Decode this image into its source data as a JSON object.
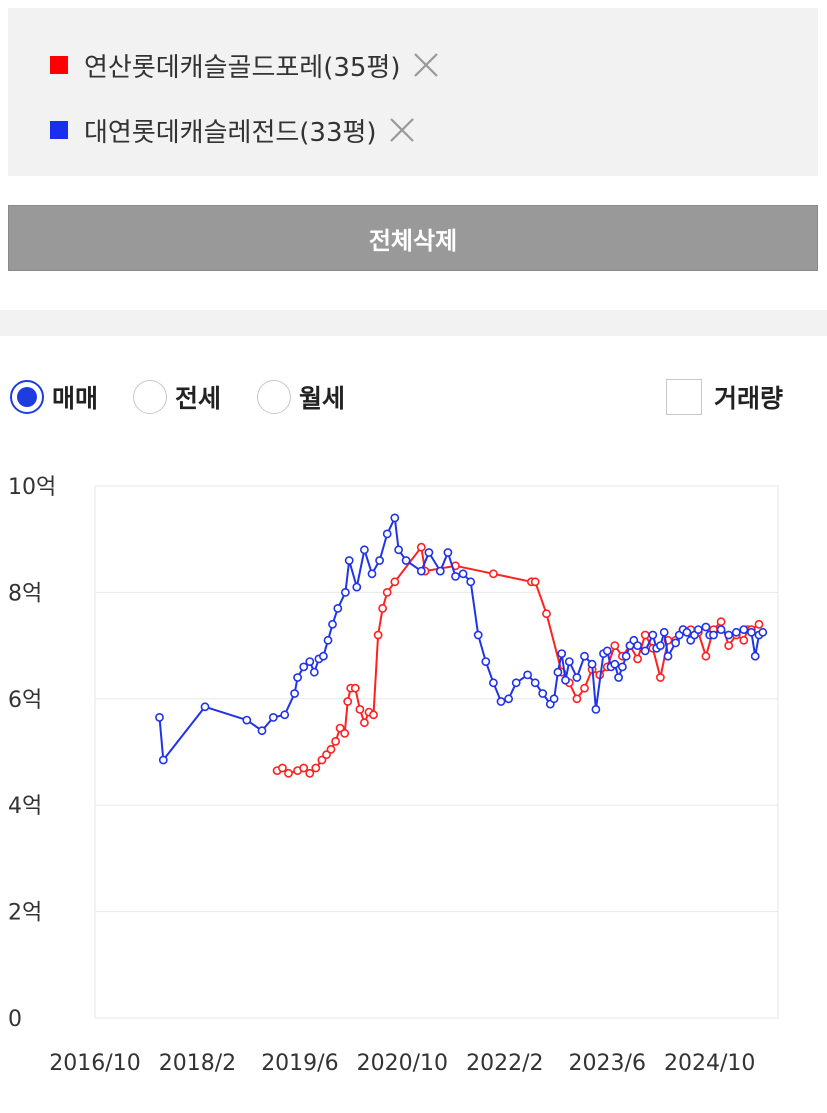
{
  "compare": {
    "items": [
      {
        "label": "연산롯데캐슬골드포레(35평)",
        "color": "#ff0000",
        "remove_icon": "close-icon"
      },
      {
        "label": "대연롯데캐슬레전드(33평)",
        "color": "#1a2ef0",
        "remove_icon": "close-icon"
      }
    ],
    "clear_all_label": "전체삭제"
  },
  "controls": {
    "radios": [
      {
        "label": "매매",
        "selected": true
      },
      {
        "label": "전세",
        "selected": false
      },
      {
        "label": "월세",
        "selected": false
      }
    ],
    "volume_checkbox": {
      "label": "거래량",
      "checked": false
    },
    "accent": "#1e3de0"
  },
  "chart_data": {
    "type": "line",
    "x_unit": "year (decimal)",
    "y_unit": "억",
    "ylim": [
      0,
      10
    ],
    "xlim": [
      2016.75,
      2025.75
    ],
    "y_ticks": [
      {
        "value": 0,
        "label": "0"
      },
      {
        "value": 2,
        "label": "2억"
      },
      {
        "value": 4,
        "label": "4억"
      },
      {
        "value": 6,
        "label": "6억"
      },
      {
        "value": 8,
        "label": "8억"
      },
      {
        "value": 10,
        "label": "10억"
      }
    ],
    "x_ticks": [
      {
        "value": 2016.75,
        "label": "2016/10"
      },
      {
        "value": 2018.1,
        "label": "2018/2"
      },
      {
        "value": 2019.45,
        "label": "2019/6"
      },
      {
        "value": 2020.8,
        "label": "2020/10"
      },
      {
        "value": 2022.15,
        "label": "2022/2"
      },
      {
        "value": 2023.5,
        "label": "2023/6"
      },
      {
        "value": 2024.85,
        "label": "2024/10"
      }
    ],
    "grid": true,
    "series": [
      {
        "name": "연산롯데캐슬골드포레(35평)",
        "color": "#ff2020",
        "x": [
          2019.15,
          2019.22,
          2019.3,
          2019.42,
          2019.5,
          2019.58,
          2019.66,
          2019.74,
          2019.8,
          2019.86,
          2019.92,
          2019.98,
          2020.04,
          2020.08,
          2020.12,
          2020.18,
          2020.24,
          2020.3,
          2020.36,
          2020.42,
          2020.48,
          2020.54,
          2020.6,
          2020.7,
          2021.05,
          2021.1,
          2021.5,
          2022.0,
          2022.5,
          2022.55,
          2022.7,
          2022.9,
          2023.0,
          2023.1,
          2023.2,
          2023.3,
          2023.4,
          2023.5,
          2023.6,
          2023.7,
          2023.8,
          2023.9,
          2024.0,
          2024.1,
          2024.2,
          2024.3,
          2024.4,
          2024.5,
          2024.6,
          2024.7,
          2024.8,
          2024.9,
          2025.0,
          2025.1,
          2025.2,
          2025.3,
          2025.35,
          2025.4,
          2025.5
        ],
        "y": [
          4.65,
          4.7,
          4.6,
          4.65,
          4.7,
          4.6,
          4.7,
          4.85,
          4.95,
          5.05,
          5.2,
          5.45,
          5.35,
          5.95,
          6.2,
          6.2,
          5.8,
          5.55,
          5.75,
          5.7,
          7.2,
          7.7,
          8.0,
          8.2,
          8.85,
          8.4,
          8.5,
          8.35,
          8.2,
          8.2,
          7.6,
          6.5,
          6.3,
          6.0,
          6.2,
          6.55,
          6.45,
          6.6,
          7.0,
          6.8,
          7.0,
          6.75,
          7.2,
          6.95,
          6.4,
          7.1,
          7.1,
          7.3,
          7.3,
          7.25,
          6.8,
          7.3,
          7.45,
          7.0,
          7.2,
          7.1,
          7.3,
          7.3,
          7.4
        ]
      },
      {
        "name": "대연롯데캐슬레전드(33평)",
        "color": "#2033e8",
        "x": [
          2017.6,
          2017.65,
          2018.2,
          2018.75,
          2018.95,
          2019.1,
          2019.25,
          2019.38,
          2019.42,
          2019.5,
          2019.58,
          2019.64,
          2019.7,
          2019.76,
          2019.82,
          2019.88,
          2019.95,
          2020.05,
          2020.1,
          2020.2,
          2020.3,
          2020.4,
          2020.5,
          2020.6,
          2020.7,
          2020.75,
          2020.85,
          2021.05,
          2021.15,
          2021.3,
          2021.4,
          2021.5,
          2021.6,
          2021.7,
          2021.8,
          2021.9,
          2022.0,
          2022.1,
          2022.2,
          2022.3,
          2022.45,
          2022.55,
          2022.65,
          2022.75,
          2022.8,
          2022.85,
          2022.9,
          2022.95,
          2023.0,
          2023.1,
          2023.2,
          2023.3,
          2023.35,
          2023.45,
          2023.5,
          2023.55,
          2023.6,
          2023.65,
          2023.7,
          2023.75,
          2023.8,
          2023.85,
          2023.9,
          2024.0,
          2024.1,
          2024.15,
          2024.2,
          2024.25,
          2024.3,
          2024.4,
          2024.45,
          2024.5,
          2024.55,
          2024.6,
          2024.65,
          2024.7,
          2024.8,
          2024.85,
          2024.9,
          2025.0,
          2025.1,
          2025.2,
          2025.3,
          2025.4,
          2025.45,
          2025.5,
          2025.55
        ],
        "y": [
          5.65,
          4.85,
          5.85,
          5.6,
          5.4,
          5.65,
          5.7,
          6.1,
          6.4,
          6.6,
          6.7,
          6.5,
          6.75,
          6.8,
          7.1,
          7.4,
          7.7,
          8.0,
          8.6,
          8.1,
          8.8,
          8.35,
          8.6,
          9.1,
          9.4,
          8.8,
          8.6,
          8.4,
          8.75,
          8.4,
          8.75,
          8.3,
          8.35,
          8.2,
          7.2,
          6.7,
          6.3,
          5.95,
          6.0,
          6.3,
          6.45,
          6.3,
          6.1,
          5.9,
          6.0,
          6.5,
          6.85,
          6.35,
          6.7,
          6.4,
          6.8,
          6.65,
          5.8,
          6.85,
          6.9,
          6.6,
          6.65,
          6.4,
          6.6,
          6.8,
          7.0,
          7.1,
          7.0,
          6.9,
          7.2,
          6.95,
          7.0,
          7.25,
          6.8,
          7.05,
          7.2,
          7.3,
          7.25,
          7.1,
          7.2,
          7.3,
          7.35,
          7.2,
          7.2,
          7.3,
          7.2,
          7.25,
          7.3,
          7.25,
          6.8,
          7.2,
          7.25
        ]
      }
    ]
  }
}
